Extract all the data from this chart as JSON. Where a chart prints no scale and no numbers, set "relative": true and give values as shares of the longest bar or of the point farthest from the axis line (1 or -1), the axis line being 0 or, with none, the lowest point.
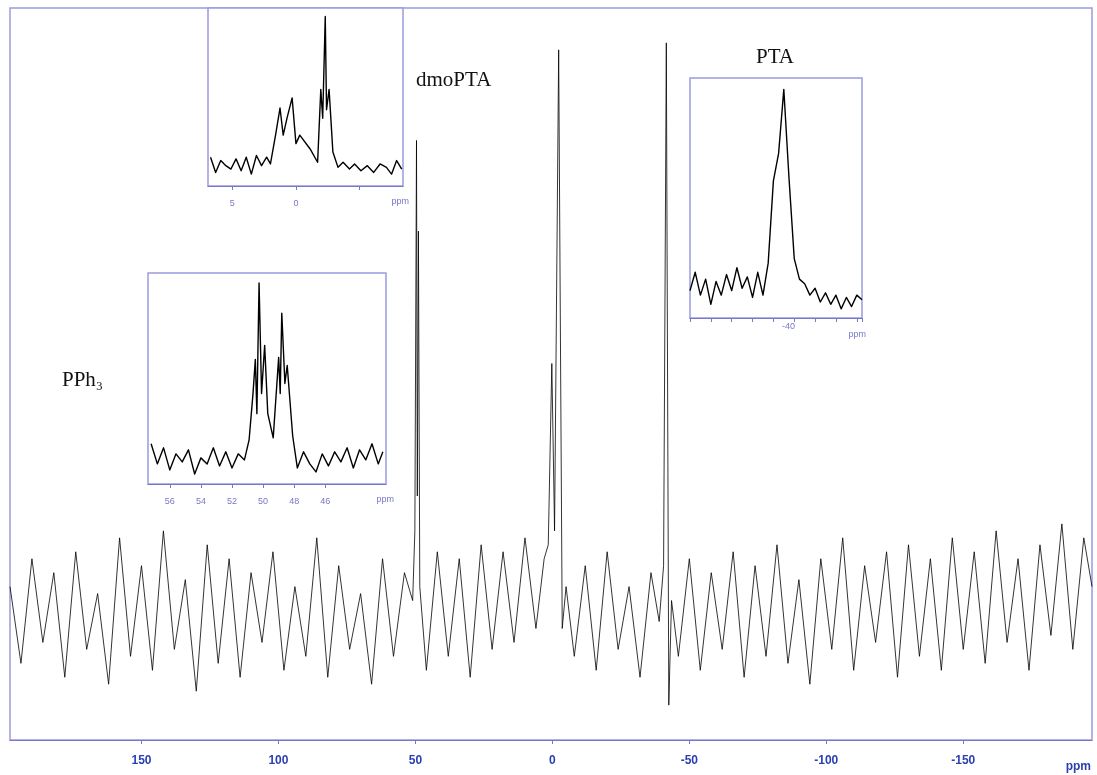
{
  "chart_data": [
    {
      "type": "line",
      "relative": true,
      "xlabel": "ppm",
      "xlim": [
        198,
        -197
      ],
      "xticks": [
        150,
        100,
        50,
        0,
        -50,
        -100,
        -150
      ],
      "grid": false,
      "annotations": [
        "PPh₃",
        "dmoPTA",
        "PTA"
      ],
      "series": [
        {
          "color": "#000000",
          "x": [
            198,
            194,
            190,
            186,
            182,
            178,
            174,
            170,
            166,
            162,
            158,
            154,
            150,
            146,
            142,
            138,
            134,
            130,
            126,
            122,
            118,
            114,
            110,
            106,
            102,
            98,
            94,
            90,
            86,
            82,
            78,
            74,
            70,
            66,
            62,
            58,
            54,
            51,
            50.2,
            49.6,
            49.3,
            48.9,
            48.4,
            46,
            42,
            38,
            34,
            30,
            26,
            22,
            18,
            14,
            10,
            6,
            3,
            1.5,
            0.2,
            -0.8,
            -2.3,
            -3.6,
            -5,
            -8,
            -12,
            -16,
            -20,
            -24,
            -28,
            -32,
            -36,
            -39,
            -40.6,
            -41.6,
            -42.5,
            -43.5,
            -46,
            -50,
            -54,
            -58,
            -62,
            -66,
            -70,
            -74,
            -78,
            -82,
            -86,
            -90,
            -94,
            -98,
            -102,
            -106,
            -110,
            -114,
            -118,
            -122,
            -126,
            -130,
            -134,
            -138,
            -142,
            -146,
            -150,
            -154,
            -158,
            -162,
            -166,
            -170,
            -174,
            -178,
            -182,
            -186,
            -190,
            -194,
            -197
          ],
          "values": [
            0.22,
            0.11,
            0.26,
            0.14,
            0.24,
            0.09,
            0.27,
            0.13,
            0.21,
            0.08,
            0.29,
            0.12,
            0.25,
            0.1,
            0.3,
            0.13,
            0.23,
            0.07,
            0.28,
            0.11,
            0.26,
            0.09,
            0.24,
            0.14,
            0.27,
            0.1,
            0.22,
            0.12,
            0.29,
            0.09,
            0.25,
            0.13,
            0.21,
            0.08,
            0.26,
            0.12,
            0.24,
            0.2,
            0.3,
            0.86,
            0.35,
            0.73,
            0.22,
            0.1,
            0.27,
            0.12,
            0.26,
            0.09,
            0.28,
            0.13,
            0.27,
            0.14,
            0.29,
            0.16,
            0.26,
            0.28,
            0.54,
            0.3,
            0.99,
            0.16,
            0.22,
            0.12,
            0.25,
            0.1,
            0.27,
            0.13,
            0.22,
            0.09,
            0.24,
            0.17,
            0.25,
            1.0,
            0.05,
            0.2,
            0.12,
            0.26,
            0.1,
            0.24,
            0.13,
            0.27,
            0.09,
            0.25,
            0.12,
            0.28,
            0.11,
            0.23,
            0.08,
            0.26,
            0.13,
            0.29,
            0.1,
            0.25,
            0.14,
            0.27,
            0.09,
            0.28,
            0.12,
            0.26,
            0.1,
            0.29,
            0.13,
            0.27,
            0.11,
            0.3,
            0.14,
            0.26,
            0.1,
            0.28,
            0.15,
            0.31,
            0.13,
            0.29,
            0.22
          ]
        }
      ]
    },
    {
      "type": "line",
      "relative": true,
      "xlabel": "ppm",
      "xlim": [
        6.9,
        -8.4
      ],
      "xticks": [
        5,
        0,
        {
          "value": -5,
          "label": null
        }
      ],
      "grid": false,
      "series": [
        {
          "color": "#000000",
          "x": [
            6.7,
            6.3,
            5.9,
            5.5,
            5.1,
            4.7,
            4.3,
            3.9,
            3.5,
            3.1,
            2.7,
            2.3,
            2.0,
            1.6,
            1.25,
            1.0,
            0.7,
            0.3,
            0,
            -0.3,
            -1.1,
            -1.7,
            -1.95,
            -2.1,
            -2.3,
            -2.4,
            -2.6,
            -2.9,
            -3.3,
            -3.7,
            -4.2,
            -4.6,
            -5.1,
            -5.6,
            -6.1,
            -6.6,
            -7.1,
            -7.5,
            -7.9,
            -8.3
          ],
          "values": [
            0.17,
            0.08,
            0.15,
            0.12,
            0.1,
            0.16,
            0.09,
            0.17,
            0.07,
            0.18,
            0.12,
            0.17,
            0.13,
            0.3,
            0.46,
            0.3,
            0.4,
            0.52,
            0.25,
            0.3,
            0.22,
            0.14,
            0.57,
            0.4,
            1,
            0.45,
            0.57,
            0.2,
            0.11,
            0.14,
            0.1,
            0.13,
            0.09,
            0.12,
            0.08,
            0.13,
            0.11,
            0.07,
            0.15,
            0.1
          ]
        }
      ]
    },
    {
      "type": "line",
      "relative": true,
      "xlabel": "ppm",
      "xlim": [
        57.4,
        42.1
      ],
      "xticks": [
        56,
        54,
        52,
        50,
        48,
        46
      ],
      "grid": false,
      "series": [
        {
          "color": "#000000",
          "x": [
            57.2,
            56.8,
            56.4,
            56.0,
            55.6,
            55.2,
            54.8,
            54.4,
            54.0,
            53.6,
            53.2,
            52.8,
            52.4,
            52.0,
            51.6,
            51.2,
            50.9,
            50.65,
            50.5,
            50.4,
            50.26,
            50.1,
            49.9,
            49.7,
            49.35,
            49.0,
            48.9,
            48.8,
            48.6,
            48.45,
            48.1,
            47.8,
            47.4,
            47.0,
            46.6,
            46.2,
            45.8,
            45.4,
            45.0,
            44.6,
            44.2,
            43.8,
            43.4,
            43.0,
            42.6,
            42.3
          ],
          "values": [
            0.2,
            0.1,
            0.18,
            0.07,
            0.15,
            0.11,
            0.17,
            0.05,
            0.13,
            0.1,
            0.18,
            0.09,
            0.16,
            0.08,
            0.15,
            0.12,
            0.22,
            0.45,
            0.62,
            0.35,
            1,
            0.45,
            0.69,
            0.35,
            0.23,
            0.63,
            0.45,
            0.85,
            0.5,
            0.59,
            0.24,
            0.08,
            0.16,
            0.1,
            0.06,
            0.15,
            0.09,
            0.16,
            0.11,
            0.18,
            0.08,
            0.17,
            0.12,
            0.2,
            0.1,
            0.16
          ]
        }
      ]
    },
    {
      "type": "line",
      "relative": true,
      "xlabel": "ppm",
      "annotations": [
        "-40"
      ],
      "grid": false,
      "categories": [
        null,
        null,
        null,
        null,
        null,
        null,
        null,
        null,
        null,
        null,
        null,
        null,
        null,
        null,
        null,
        null,
        null,
        null,
        null,
        null,
        null,
        null,
        null,
        null,
        null,
        null,
        null,
        null,
        null,
        null,
        null,
        null,
        null,
        null
      ],
      "series": [
        {
          "color": "#000000",
          "values": [
            0.12,
            0.2,
            0.1,
            0.17,
            0.06,
            0.16,
            0.1,
            0.19,
            0.12,
            0.22,
            0.13,
            0.18,
            0.09,
            0.2,
            0.1,
            0.24,
            0.6,
            0.72,
            1,
            0.61,
            0.26,
            0.17,
            0.15,
            0.1,
            0.13,
            0.07,
            0.11,
            0.06,
            0.1,
            0.04,
            0.09,
            0.05,
            0.1,
            0.08
          ]
        }
      ]
    }
  ]
}
